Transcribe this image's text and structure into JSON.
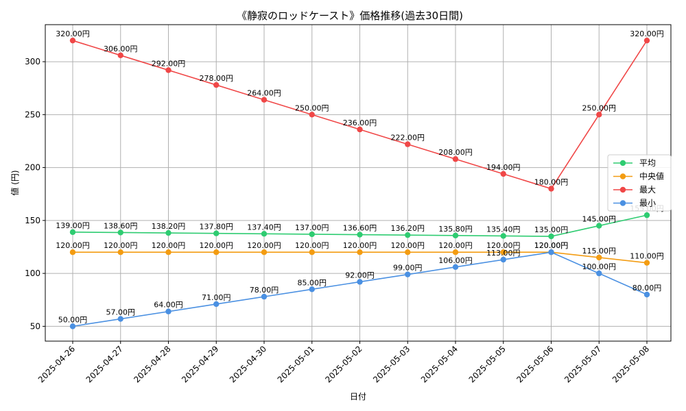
{
  "chart_data": {
    "type": "line",
    "title": "《静寂のロッドケースト》価格推移(過去30日間)",
    "xlabel": "日付",
    "ylabel": "値 (円)",
    "x": [
      "2025-04-26",
      "2025-04-27",
      "2025-04-28",
      "2025-04-29",
      "2025-04-30",
      "2025-05-01",
      "2025-05-02",
      "2025-05-03",
      "2025-05-04",
      "2025-05-05",
      "2025-05-06",
      "2025-05-07",
      "2025-05-08"
    ],
    "ylim": [
      36,
      335
    ],
    "yticks": [
      50,
      100,
      150,
      200,
      250,
      300
    ],
    "grid": true,
    "legend_position": "right",
    "series": [
      {
        "name": "平均",
        "color": "#2ecc71",
        "values": [
          139.0,
          138.6,
          138.2,
          137.8,
          137.4,
          137.0,
          136.6,
          136.2,
          135.8,
          135.4,
          135.0,
          145.0,
          155.0
        ],
        "labels": [
          "139.00円",
          "138.60円",
          "138.20円",
          "137.80円",
          "137.40円",
          "137.00円",
          "136.60円",
          "136.20円",
          "135.80円",
          "135.40円",
          "135.00円",
          "145.00円",
          "155.00円"
        ]
      },
      {
        "name": "中央値",
        "color": "#f39c12",
        "values": [
          120,
          120,
          120,
          120,
          120,
          120,
          120,
          120,
          120,
          120,
          120,
          115,
          110
        ],
        "labels": [
          "120.00円",
          "120.00円",
          "120.00円",
          "120.00円",
          "120.00円",
          "120.00円",
          "120.00円",
          "120.00円",
          "120.00円",
          "120.00円",
          "120.00円",
          "115.00円",
          "110.00円"
        ]
      },
      {
        "name": "最大",
        "color": "#f04747",
        "values": [
          320,
          306,
          292,
          278,
          264,
          250,
          236,
          222,
          208,
          194,
          180,
          250,
          320
        ],
        "labels": [
          "320.00円",
          "306.00円",
          "292.00円",
          "278.00円",
          "264.00円",
          "250.00円",
          "236.00円",
          "222.00円",
          "208.00円",
          "194.00円",
          "180.00円",
          "250.00円",
          "320.00円"
        ]
      },
      {
        "name": "最小",
        "color": "#4a90e2",
        "values": [
          50,
          57,
          64,
          71,
          78,
          85,
          92,
          99,
          106,
          113,
          120,
          100,
          80
        ],
        "labels": [
          "50.00円",
          "57.00円",
          "64.00円",
          "71.00円",
          "78.00円",
          "85.00円",
          "92.00円",
          "99.00円",
          "106.00円",
          "113.00円",
          "120.00円",
          "100.00円",
          "80.00円"
        ]
      }
    ]
  }
}
